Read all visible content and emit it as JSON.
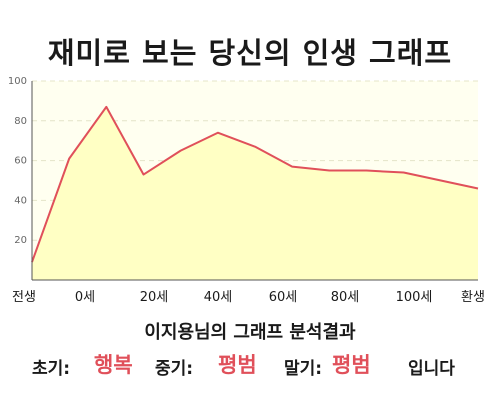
{
  "title": "재미로 보는 당신의 인생 그래프",
  "user_line": "이지용님의 그래프 분석결과",
  "summary": {
    "early_label": "초기:",
    "early_value": "행복",
    "middle_label": "중기:",
    "middle_value": "평범",
    "late_label": "말기:",
    "late_value": "평범",
    "ending": "입니다"
  },
  "colors": {
    "line": "#e0505a",
    "fill": "#ffffc4",
    "plot_bg": "#fffff0",
    "grid": "#e4e4c8",
    "accent": "#e0505a"
  },
  "chart_data": {
    "type": "area",
    "x": [
      0,
      1,
      2,
      3,
      4,
      5,
      6,
      7,
      8,
      9,
      10,
      11,
      12
    ],
    "y": [
      9,
      61,
      87,
      53,
      65,
      74,
      67,
      57,
      55,
      55,
      54,
      50,
      46
    ],
    "x_tick_labels": [
      "전생",
      "0세",
      "20세",
      "40세",
      "60세",
      "80세",
      "100세",
      "환생"
    ],
    "y_ticks": [
      20,
      40,
      60,
      80,
      100
    ],
    "ylim": [
      0,
      100
    ],
    "grid": true,
    "legend": false
  }
}
